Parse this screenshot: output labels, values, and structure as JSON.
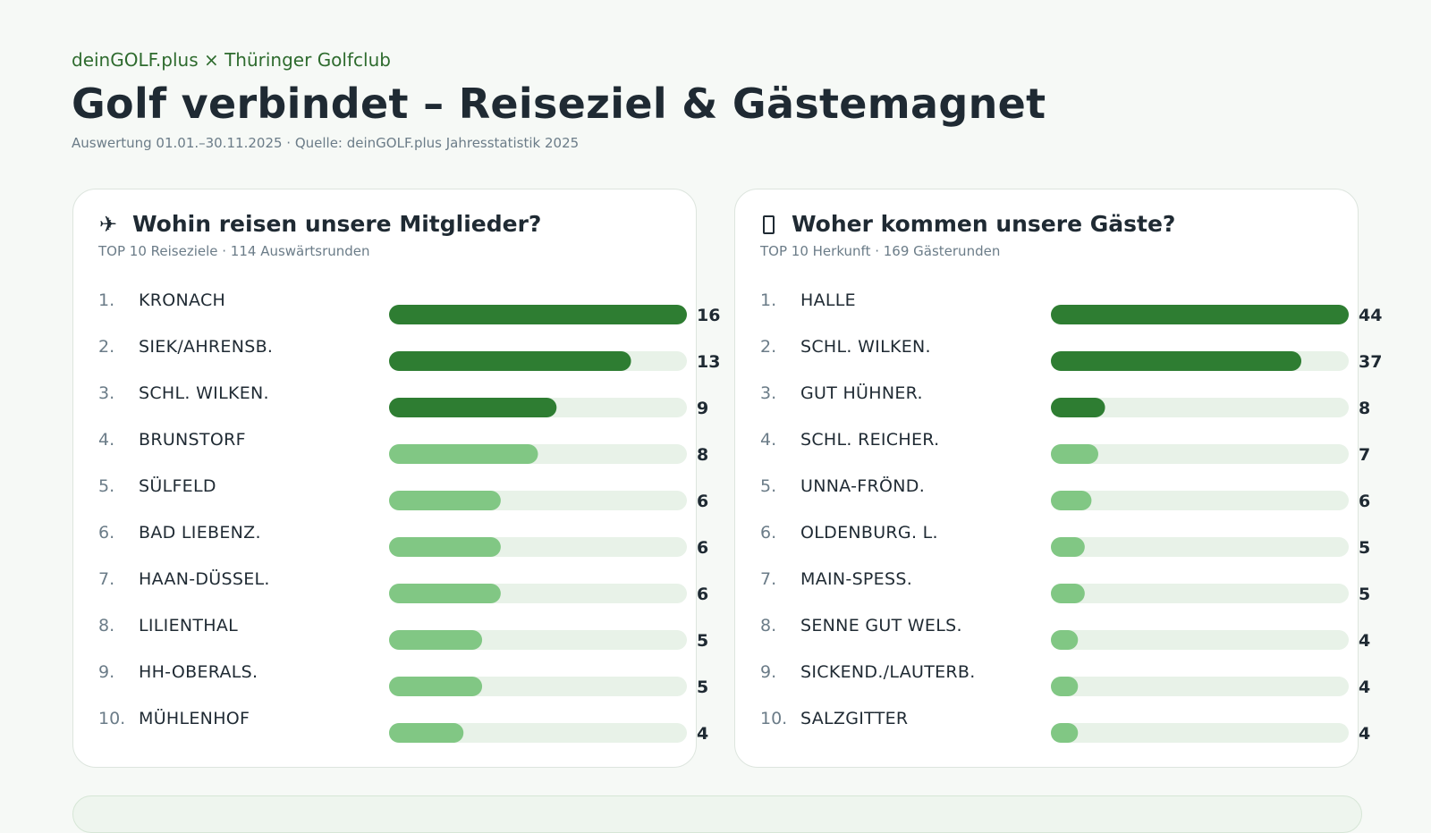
{
  "header": {
    "brand": "deinGOLF.plus × Thüringer Golfclub",
    "title": "Golf verbindet – Reiseziel & Gästemagnet",
    "subtitle": "Auswertung 01.01.–30.11.2025 · Quelle: deinGOLF.plus Jahresstatistik 2025"
  },
  "colors": {
    "bar_strong": "#2e7d32",
    "bar_light": "#81c784",
    "track": "#e8f2e8",
    "accent_text": "#2e6b2e"
  },
  "chart_data": [
    {
      "type": "bar",
      "orientation": "horizontal",
      "icon": "airplane-icon",
      "title": "Wohin reisen unsere Mitglieder?",
      "subtitle": "TOP 10 Reiseziele · 114 Auswärtsrunden",
      "max": 16,
      "highlight_top": 3,
      "ranks": [
        "1.",
        "2.",
        "3.",
        "4.",
        "5.",
        "6.",
        "7.",
        "8.",
        "9.",
        "10."
      ],
      "categories": [
        "KRONACH",
        "SIEK/AHRENSB.",
        "SCHL. WILKEN.",
        "BRUNSTORF",
        "SÜLFELD",
        "BAD LIEBENZ.",
        "HAAN-DÜSSEL.",
        "LILIENTHAL",
        "HH-OBERALS.",
        "MÜHLENHOF"
      ],
      "values": [
        16,
        13,
        9,
        8,
        6,
        6,
        6,
        5,
        5,
        4
      ]
    },
    {
      "type": "bar",
      "orientation": "horizontal",
      "icon": "building-icon",
      "title": "Woher kommen unsere Gäste?",
      "subtitle": "TOP 10 Herkunft · 169 Gästerunden",
      "max": 44,
      "highlight_top": 3,
      "ranks": [
        "1.",
        "2.",
        "3.",
        "4.",
        "5.",
        "6.",
        "7.",
        "8.",
        "9.",
        "10."
      ],
      "categories": [
        "HALLE",
        "SCHL. WILKEN.",
        "GUT HÜHNER.",
        "SCHL. REICHER.",
        "UNNA-FRÖND.",
        "OLDENBURG. L.",
        "MAIN-SPESS.",
        "SENNE GUT WELS.",
        "SICKEND./LAUTERB.",
        "SALZGITTER"
      ],
      "values": [
        44,
        37,
        8,
        7,
        6,
        5,
        5,
        4,
        4,
        4
      ]
    }
  ]
}
